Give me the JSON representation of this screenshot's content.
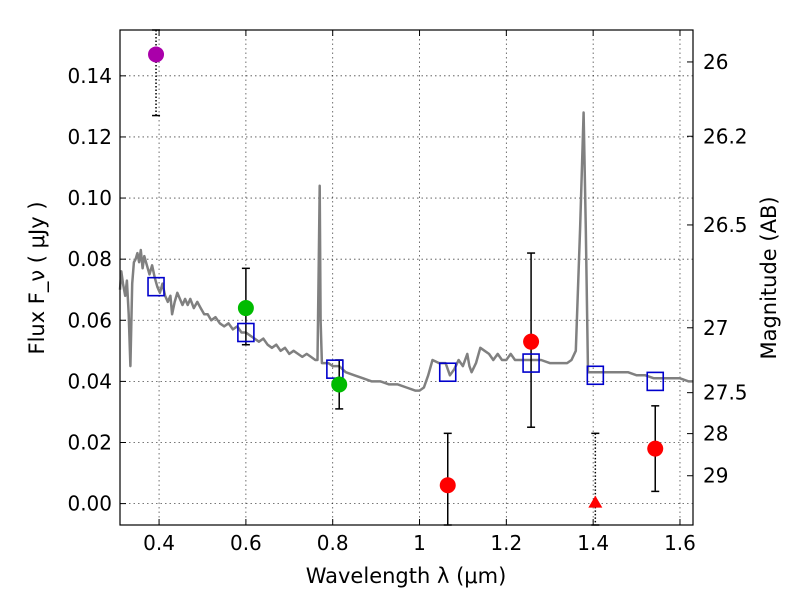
{
  "chart_data": {
    "type": "scatter",
    "xlabel": "Wavelength  λ (μm)",
    "ylabel": "Flux  F_ν  ( μJy )",
    "y2label": "Magnitude (AB)",
    "xlim": [
      0.31,
      1.63
    ],
    "ylim": [
      -0.007,
      0.155
    ],
    "x_ticks": [
      {
        "value": 0.4,
        "label": "0.4"
      },
      {
        "value": 0.6,
        "label": "0.6"
      },
      {
        "value": 0.8,
        "label": "0.8"
      },
      {
        "value": 1.0,
        "label": "1"
      },
      {
        "value": 1.2,
        "label": "1.2"
      },
      {
        "value": 1.4,
        "label": "1.4"
      },
      {
        "value": 1.6,
        "label": "1.6"
      }
    ],
    "y_ticks": [
      {
        "value": 0.0,
        "label": "0.00"
      },
      {
        "value": 0.02,
        "label": "0.02"
      },
      {
        "value": 0.04,
        "label": "0.04"
      },
      {
        "value": 0.06,
        "label": "0.06"
      },
      {
        "value": 0.08,
        "label": "0.08"
      },
      {
        "value": 0.1,
        "label": "0.10"
      },
      {
        "value": 0.12,
        "label": "0.12"
      },
      {
        "value": 0.14,
        "label": "0.14"
      }
    ],
    "y2_ticks": [
      {
        "mag": 26,
        "label": "26"
      },
      {
        "mag": 26.2,
        "label": "26.2"
      },
      {
        "mag": 26.5,
        "label": "26.5"
      },
      {
        "mag": 27,
        "label": "27"
      },
      {
        "mag": 27.5,
        "label": "27.5"
      },
      {
        "mag": 28,
        "label": "28"
      },
      {
        "mag": 29,
        "label": "29"
      }
    ],
    "grid": true,
    "colors": {
      "template": "#808080",
      "model": "#0000cc",
      "purple": "#aa00aa",
      "green": "#00bb00",
      "red": "#ff0000",
      "errorbar": "#000000"
    },
    "template_spectrum": [
      [
        0.31,
        0.07
      ],
      [
        0.313,
        0.076
      ],
      [
        0.317,
        0.072
      ],
      [
        0.322,
        0.068
      ],
      [
        0.326,
        0.073
      ],
      [
        0.33,
        0.062
      ],
      [
        0.334,
        0.045
      ],
      [
        0.338,
        0.072
      ],
      [
        0.342,
        0.079
      ],
      [
        0.346,
        0.08
      ],
      [
        0.35,
        0.082
      ],
      [
        0.354,
        0.079
      ],
      [
        0.358,
        0.083
      ],
      [
        0.362,
        0.077
      ],
      [
        0.366,
        0.081
      ],
      [
        0.372,
        0.078
      ],
      [
        0.378,
        0.075
      ],
      [
        0.384,
        0.078
      ],
      [
        0.39,
        0.074
      ],
      [
        0.396,
        0.071
      ],
      [
        0.402,
        0.069
      ],
      [
        0.408,
        0.072
      ],
      [
        0.414,
        0.068
      ],
      [
        0.42,
        0.066
      ],
      [
        0.426,
        0.068
      ],
      [
        0.43,
        0.062
      ],
      [
        0.436,
        0.066
      ],
      [
        0.442,
        0.069
      ],
      [
        0.448,
        0.067
      ],
      [
        0.454,
        0.065
      ],
      [
        0.46,
        0.067
      ],
      [
        0.466,
        0.065
      ],
      [
        0.472,
        0.067
      ],
      [
        0.48,
        0.064
      ],
      [
        0.488,
        0.066
      ],
      [
        0.496,
        0.064
      ],
      [
        0.504,
        0.062
      ],
      [
        0.512,
        0.062
      ],
      [
        0.52,
        0.06
      ],
      [
        0.53,
        0.061
      ],
      [
        0.54,
        0.059
      ],
      [
        0.55,
        0.058
      ],
      [
        0.56,
        0.059
      ],
      [
        0.57,
        0.057
      ],
      [
        0.58,
        0.058
      ],
      [
        0.59,
        0.056
      ],
      [
        0.6,
        0.056
      ],
      [
        0.61,
        0.055
      ],
      [
        0.62,
        0.054
      ],
      [
        0.63,
        0.053
      ],
      [
        0.64,
        0.054
      ],
      [
        0.65,
        0.052
      ],
      [
        0.66,
        0.051
      ],
      [
        0.67,
        0.052
      ],
      [
        0.68,
        0.05
      ],
      [
        0.69,
        0.051
      ],
      [
        0.7,
        0.049
      ],
      [
        0.71,
        0.05
      ],
      [
        0.72,
        0.049
      ],
      [
        0.73,
        0.048
      ],
      [
        0.74,
        0.049
      ],
      [
        0.75,
        0.048
      ],
      [
        0.76,
        0.047
      ],
      [
        0.765,
        0.047
      ],
      [
        0.768,
        0.08
      ],
      [
        0.77,
        0.104
      ],
      [
        0.772,
        0.06
      ],
      [
        0.775,
        0.046
      ],
      [
        0.79,
        0.046
      ],
      [
        0.8,
        0.045
      ],
      [
        0.815,
        0.045
      ],
      [
        0.83,
        0.043
      ],
      [
        0.85,
        0.042
      ],
      [
        0.87,
        0.041
      ],
      [
        0.89,
        0.04
      ],
      [
        0.91,
        0.04
      ],
      [
        0.93,
        0.039
      ],
      [
        0.95,
        0.039
      ],
      [
        0.97,
        0.038
      ],
      [
        0.99,
        0.037
      ],
      [
        1.0,
        0.037
      ],
      [
        1.01,
        0.038
      ],
      [
        1.02,
        0.042
      ],
      [
        1.03,
        0.047
      ],
      [
        1.045,
        0.046
      ],
      [
        1.06,
        0.046
      ],
      [
        1.07,
        0.042
      ],
      [
        1.08,
        0.044
      ],
      [
        1.09,
        0.047
      ],
      [
        1.1,
        0.045
      ],
      [
        1.11,
        0.049
      ],
      [
        1.115,
        0.045
      ],
      [
        1.12,
        0.043
      ],
      [
        1.13,
        0.046
      ],
      [
        1.14,
        0.051
      ],
      [
        1.15,
        0.05
      ],
      [
        1.16,
        0.049
      ],
      [
        1.17,
        0.047
      ],
      [
        1.18,
        0.049
      ],
      [
        1.19,
        0.047
      ],
      [
        1.2,
        0.047
      ],
      [
        1.21,
        0.049
      ],
      [
        1.22,
        0.047
      ],
      [
        1.24,
        0.047
      ],
      [
        1.26,
        0.047
      ],
      [
        1.28,
        0.047
      ],
      [
        1.3,
        0.046
      ],
      [
        1.32,
        0.046
      ],
      [
        1.34,
        0.046
      ],
      [
        1.35,
        0.047
      ],
      [
        1.36,
        0.05
      ],
      [
        1.37,
        0.09
      ],
      [
        1.378,
        0.128
      ],
      [
        1.383,
        0.09
      ],
      [
        1.388,
        0.043
      ],
      [
        1.4,
        0.043
      ],
      [
        1.42,
        0.043
      ],
      [
        1.44,
        0.043
      ],
      [
        1.46,
        0.043
      ],
      [
        1.48,
        0.043
      ],
      [
        1.5,
        0.042
      ],
      [
        1.52,
        0.042
      ],
      [
        1.54,
        0.041
      ],
      [
        1.56,
        0.041
      ],
      [
        1.58,
        0.041
      ],
      [
        1.6,
        0.041
      ],
      [
        1.62,
        0.04
      ],
      [
        1.63,
        0.04
      ]
    ],
    "model_photometry": [
      {
        "x": 0.393,
        "y": 0.071
      },
      {
        "x": 0.6,
        "y": 0.056
      },
      {
        "x": 0.805,
        "y": 0.044
      },
      {
        "x": 1.065,
        "y": 0.043
      },
      {
        "x": 1.257,
        "y": 0.046
      },
      {
        "x": 1.405,
        "y": 0.042
      },
      {
        "x": 1.543,
        "y": 0.04
      }
    ],
    "observed_points": [
      {
        "x": 0.393,
        "y": 0.147,
        "ylo": 0.127,
        "yhi": 0.155,
        "color_key": "purple",
        "marker": "circle"
      },
      {
        "x": 0.6,
        "y": 0.064,
        "ylo": 0.052,
        "yhi": 0.077,
        "color_key": "green",
        "marker": "circle"
      },
      {
        "x": 0.815,
        "y": 0.039,
        "ylo": 0.031,
        "yhi": 0.047,
        "color_key": "green",
        "marker": "circle"
      },
      {
        "x": 1.065,
        "y": 0.006,
        "ylo": -0.007,
        "yhi": 0.023,
        "color_key": "red",
        "marker": "circle"
      },
      {
        "x": 1.257,
        "y": 0.053,
        "ylo": 0.025,
        "yhi": 0.082,
        "color_key": "red",
        "marker": "circle"
      },
      {
        "x": 1.405,
        "y": 0.0,
        "ylo": -0.007,
        "yhi": 0.023,
        "color_key": "red",
        "marker": "triangle"
      },
      {
        "x": 1.543,
        "y": 0.018,
        "ylo": 0.004,
        "yhi": 0.032,
        "color_key": "red",
        "marker": "circle"
      }
    ]
  }
}
